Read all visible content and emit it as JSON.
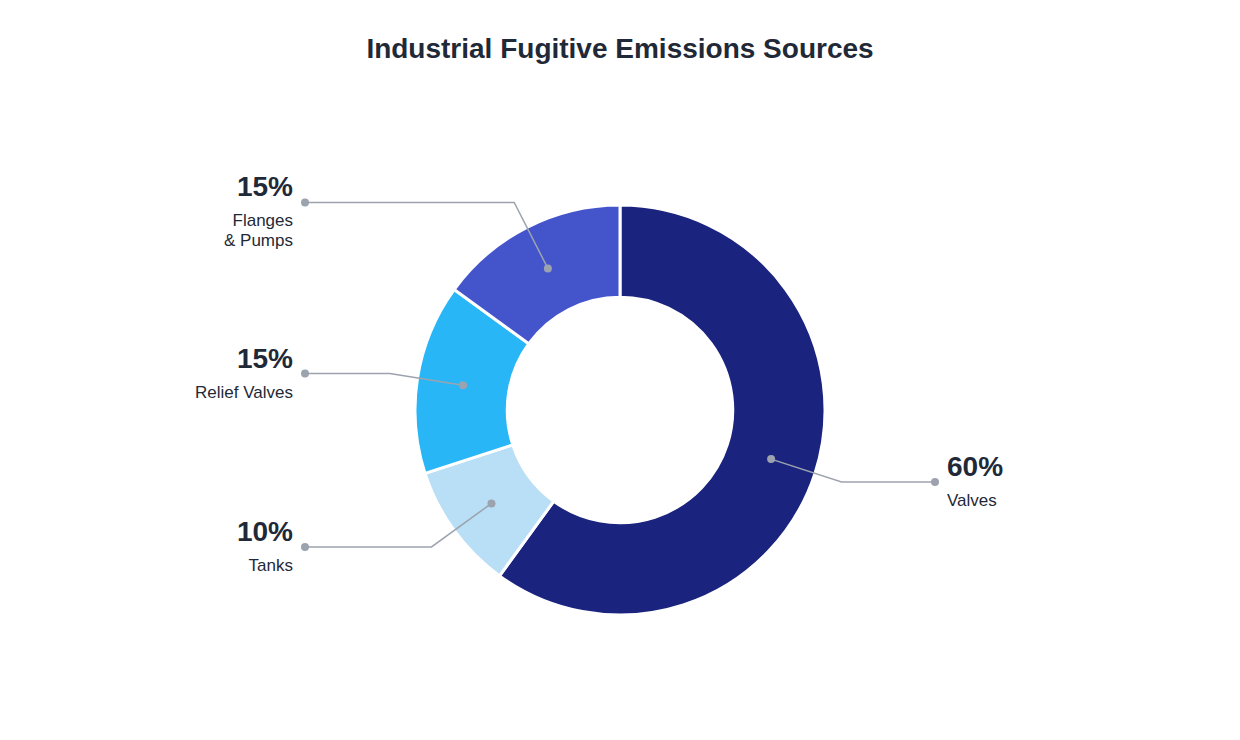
{
  "chart_data": {
    "type": "donut",
    "title": "Industrial Fugitive Emissions Sources",
    "categories": [
      "Valves",
      "Tanks",
      "Relief Valves",
      "Flanges\n& Pumps"
    ],
    "values": [
      60,
      10,
      15,
      15
    ],
    "value_labels": [
      "60%",
      "10%",
      "15%",
      "15%"
    ],
    "colors": [
      "#1a237e",
      "#b8dff5",
      "#29b6f6",
      "#4455cc"
    ],
    "data_labels": true
  }
}
